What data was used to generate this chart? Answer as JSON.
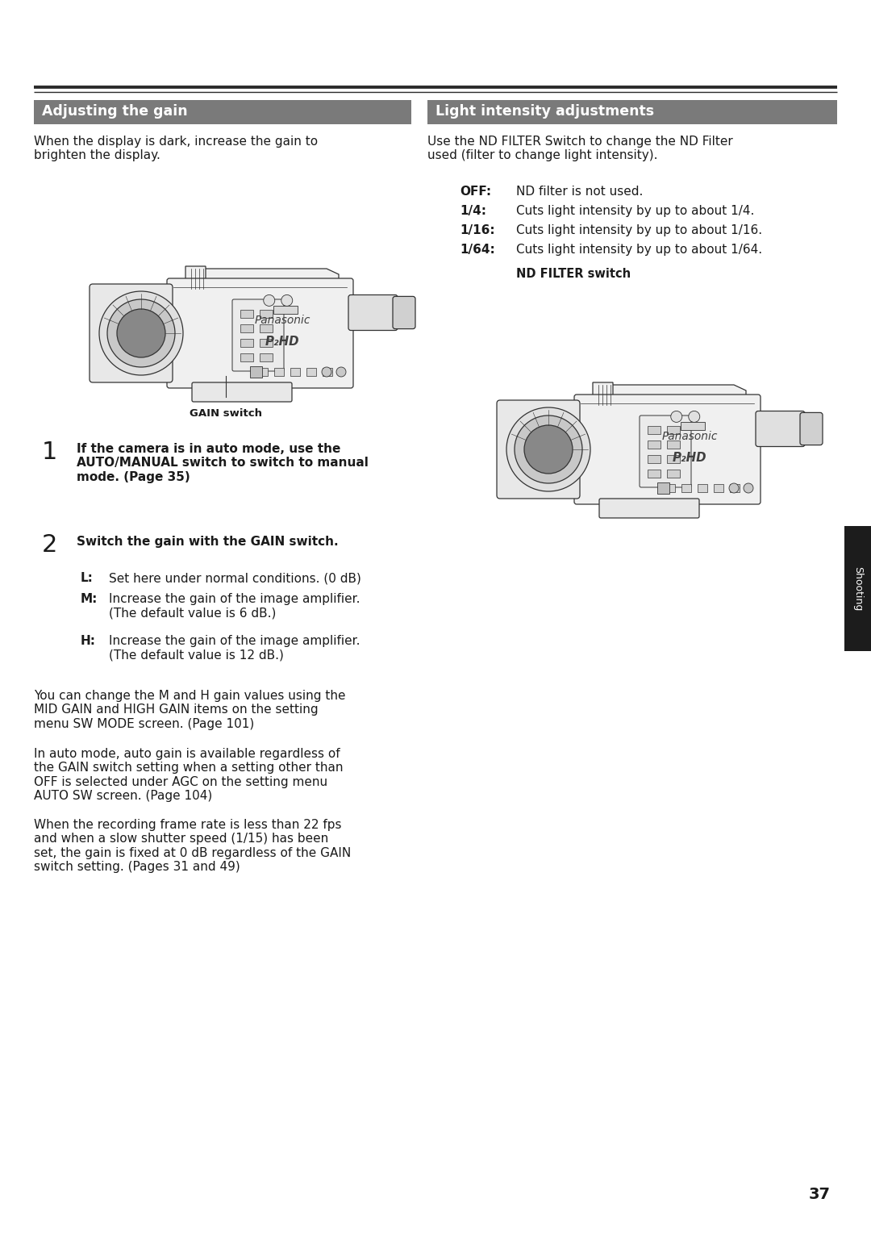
{
  "bg_color": "#ffffff",
  "header_bar_color": "#7a7a7a",
  "header_text_color": "#ffffff",
  "left_header": "Adjusting the gain",
  "right_header": "Light intensity adjustments",
  "header_font_size": 12.5,
  "body_font_size": 11.0,
  "small_font_size": 9.5,
  "left_intro": "When the display is dark, increase the gain to\nbrighten the display.",
  "right_intro": "Use the ND FILTER Switch to change the ND Filter\nused (filter to change light intensity).",
  "off_label": "OFF:",
  "off_text": "ND filter is not used.",
  "quarter_label": "1/4:",
  "quarter_text": "Cuts light intensity by up to about 1/4.",
  "sixteen_label": "1/16:",
  "sixteen_text": "Cuts light intensity by up to about 1/16.",
  "sixtyfour_label": "1/64:",
  "sixtyfour_text": "Cuts light intensity by up to about 1/64.",
  "nd_filter_label": "ND FILTER switch",
  "gain_switch_label": "GAIN switch",
  "step1_num": "1",
  "step1_text": "If the camera is in auto mode, use the\nAUTO/MANUAL switch to switch to manual\nmode. (Page 35)",
  "step2_num": "2",
  "step2_text": "Switch the gain with the GAIN switch.",
  "L_label": "L:",
  "L_text": "Set here under normal conditions. (0 dB)",
  "M_label": "M:",
  "M_text": "Increase the gain of the image amplifier.\n(The default value is 6 dB.)",
  "H_label": "H:",
  "H_text": "Increase the gain of the image amplifier.\n(The default value is 12 dB.)",
  "note_text1": "You can change the M and H gain values using the\nMID GAIN and HIGH GAIN items on the setting\nmenu SW MODE screen. (Page 101)",
  "note_text2": "In auto mode, auto gain is available regardless of\nthe GAIN switch setting when a setting other than\nOFF is selected under AGC on the setting menu\nAUTO SW screen. (Page 104)",
  "note_text3": "When the recording frame rate is less than 22 fps\nand when a slow shutter speed (1/15) has been\nset, the gain is fixed at 0 dB regardless of the GAIN\nswitch setting. (Pages 31 and 49)",
  "sidebar_text": "Shooting",
  "sidebar_bg": "#1c1c1c",
  "sidebar_text_color": "#ffffff",
  "page_number": "37",
  "rule_color": "#2a2a2a",
  "text_color": "#1a1a1a",
  "cam_line_color": "#333333",
  "cam_fill_light": "#f0f0f0",
  "cam_fill_mid": "#d8d8d8",
  "cam_fill_dark": "#a0a0a0"
}
